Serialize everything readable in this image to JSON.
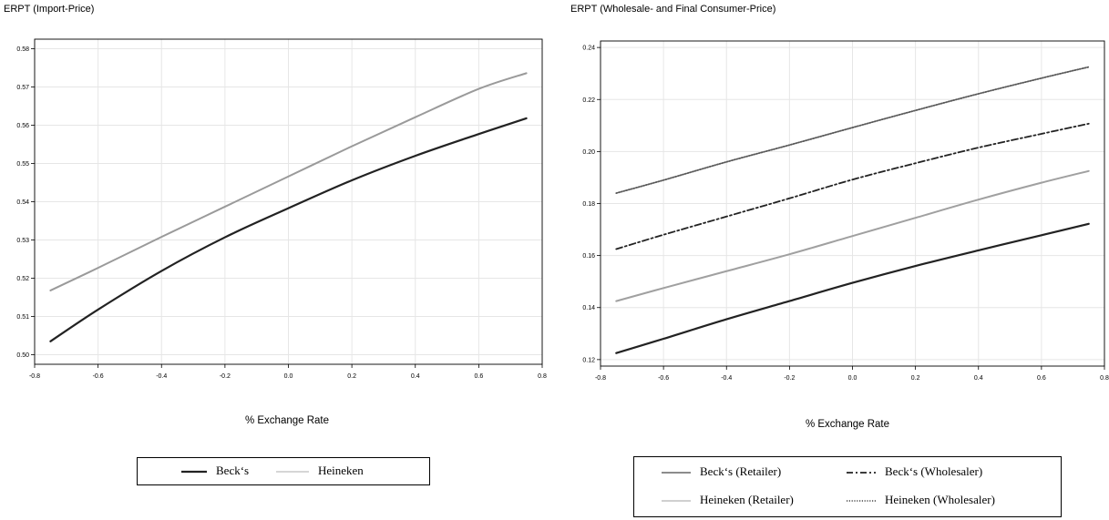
{
  "chart_data": [
    {
      "type": "line",
      "title": "ERPT (Import-Price)",
      "xlabel": "% Exchange Rate",
      "ylabel": "",
      "xlim": [
        -0.8,
        0.8
      ],
      "ylim": [
        0.4975,
        0.5825
      ],
      "xticks": [
        "-0.8",
        "-0.6",
        "-0.4",
        "-0.2",
        "0.0",
        "0.2",
        "0.4",
        "0.6",
        "0.8"
      ],
      "yticks": [
        "0.50",
        "0.51",
        "0.52",
        "0.53",
        "0.54",
        "0.55",
        "0.56",
        "0.57",
        "0.58"
      ],
      "grid": true,
      "legend_position": "below",
      "x": [
        -0.75,
        -0.6,
        -0.4,
        -0.2,
        0.0,
        0.2,
        0.4,
        0.6,
        0.75
      ],
      "series": [
        {
          "name": "Beck‘s",
          "color": "#222222",
          "style": "solid",
          "width": 2.2,
          "values": [
            0.5035,
            0.5118,
            0.5219,
            0.5307,
            0.5383,
            0.5456,
            0.552,
            0.5577,
            0.5618
          ]
        },
        {
          "name": "Heineken",
          "color": "#9a9a9a",
          "style": "solid",
          "width": 2,
          "values": [
            0.5168,
            0.5227,
            0.5308,
            0.5387,
            0.5466,
            0.5545,
            0.5621,
            0.5695,
            0.5736
          ]
        }
      ]
    },
    {
      "type": "line",
      "title": "ERPT (Wholesale- and Final Consumer-Price)",
      "xlabel": "% Exchange Rate",
      "ylabel": "",
      "xlim": [
        -0.8,
        0.8
      ],
      "ylim": [
        0.1175,
        0.2425
      ],
      "xticks": [
        "-0.8",
        "-0.6",
        "-0.4",
        "-0.2",
        "0.0",
        "0.2",
        "0.4",
        "0.6",
        "0.8"
      ],
      "yticks": [
        "0.12",
        "0.14",
        "0.16",
        "0.18",
        "0.20",
        "0.22",
        "0.24"
      ],
      "grid": true,
      "legend_position": "below",
      "x": [
        -0.75,
        -0.6,
        -0.4,
        -0.2,
        0.0,
        0.2,
        0.4,
        0.6,
        0.75
      ],
      "series": [
        {
          "name": "Beck‘s (Retailer)",
          "color": "#222222",
          "style": "solid",
          "width": 2.2,
          "values": [
            0.1225,
            0.128,
            0.1355,
            0.1425,
            0.1495,
            0.156,
            0.162,
            0.1678,
            0.1722
          ]
        },
        {
          "name": "Beck‘s (Wholesaler)",
          "color": "#222222",
          "style": "dashdot",
          "width": 1.8,
          "values": [
            0.1625,
            0.168,
            0.175,
            0.182,
            0.1892,
            0.1955,
            0.2015,
            0.2068,
            0.2107
          ]
        },
        {
          "name": "Heineken (Retailer)",
          "color": "#a0a0a0",
          "style": "solid",
          "width": 2,
          "values": [
            0.1425,
            0.1475,
            0.154,
            0.1605,
            0.1675,
            0.1745,
            0.1815,
            0.188,
            0.1925
          ]
        },
        {
          "name": "Heineken (Wholesaler)",
          "color": "#5a5a5a",
          "style": "dotted",
          "width": 1.8,
          "values": [
            0.184,
            0.189,
            0.196,
            0.2025,
            0.2092,
            0.2158,
            0.2222,
            0.2282,
            0.2325
          ]
        }
      ]
    }
  ]
}
